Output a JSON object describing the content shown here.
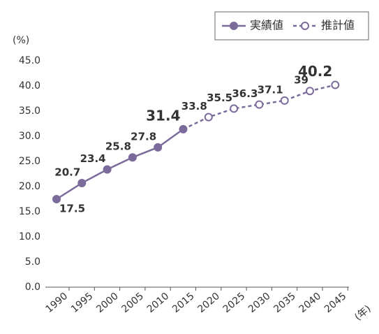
{
  "chart_data": {
    "type": "line",
    "y_unit": "(%)",
    "x_unit": "(年)",
    "categories": [
      "1990",
      "1995",
      "2000",
      "2005",
      "2010",
      "2015",
      "2020",
      "2025",
      "2030",
      "2035",
      "2040",
      "2045"
    ],
    "series": [
      {
        "name": "実績値",
        "color": "#7a6b9b",
        "style": "solid",
        "marker": "filled",
        "values": [
          17.5,
          20.7,
          23.4,
          25.8,
          27.8,
          31.4,
          null,
          null,
          null,
          null,
          null,
          null
        ]
      },
      {
        "name": "推計値",
        "color": "#7a6b9b",
        "style": "dashed",
        "marker": "open",
        "values": [
          null,
          null,
          null,
          null,
          null,
          31.4,
          33.8,
          35.5,
          36.3,
          37.1,
          39.0,
          40.2
        ]
      }
    ],
    "ylim": [
      0,
      45
    ],
    "yticks": [
      {
        "value": 0,
        "label": "0.0"
      },
      {
        "value": 5,
        "label": "5.0"
      },
      {
        "value": 10,
        "label": "10.0"
      },
      {
        "value": 15,
        "label": "15.0"
      },
      {
        "value": 20,
        "label": "20.0"
      },
      {
        "value": 25,
        "label": "25.0"
      },
      {
        "value": 30,
        "label": "30.0"
      },
      {
        "value": 35,
        "label": "35.0"
      },
      {
        "value": 40,
        "label": "40.0"
      },
      {
        "value": 45,
        "label": "45.0"
      }
    ],
    "grid": false,
    "legend": "upper right"
  }
}
